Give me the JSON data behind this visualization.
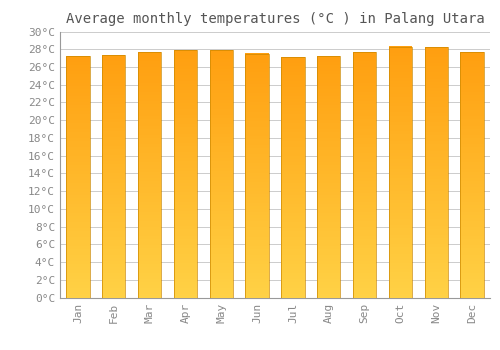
{
  "title": "Average monthly temperatures (°C ) in Palang Utara",
  "months": [
    "Jan",
    "Feb",
    "Mar",
    "Apr",
    "May",
    "Jun",
    "Jul",
    "Aug",
    "Sep",
    "Oct",
    "Nov",
    "Dec"
  ],
  "temperatures": [
    27.2,
    27.3,
    27.7,
    27.9,
    27.9,
    27.5,
    27.1,
    27.2,
    27.7,
    28.3,
    28.2,
    27.7
  ],
  "bar_color_bottom": "#FFD040",
  "bar_color_top": "#FFA010",
  "ylim": [
    0,
    30
  ],
  "ytick_step": 2,
  "background_color": "#ffffff",
  "plot_bg_color": "#ffffff",
  "grid_color": "#cccccc",
  "title_fontsize": 10,
  "tick_fontsize": 8,
  "bar_width": 0.65,
  "bar_edge_color": "#CC8800",
  "bar_edge_linewidth": 0.5
}
